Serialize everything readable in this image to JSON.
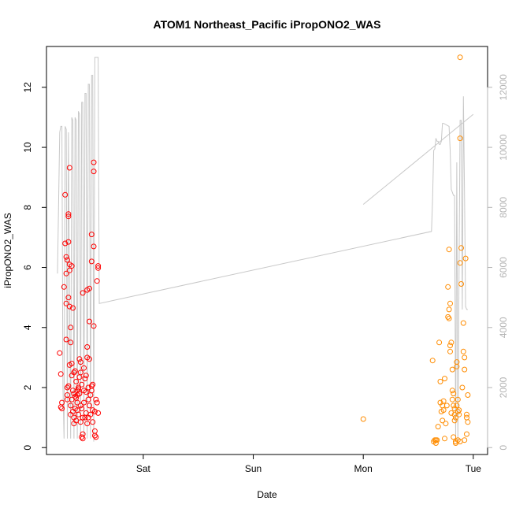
{
  "chart_data": {
    "type": "scatter",
    "title": "ATOM1 Northeast_Pacific iPropONO2_WAS",
    "xlabel": "Date",
    "ylabel": "iPropONO2_WAS",
    "x_ticks": [
      {
        "day": 0,
        "label": "Sat"
      },
      {
        "day": 1,
        "label": "Sun"
      },
      {
        "day": 2,
        "label": "Mon"
      },
      {
        "day": 3,
        "label": "Tue"
      }
    ],
    "xlim": [
      -0.88,
      3.13
    ],
    "ylim": [
      -0.23,
      13.36
    ],
    "y_ticks": [
      0,
      2,
      4,
      6,
      8,
      10,
      12
    ],
    "y2_ticks": [
      0,
      2000,
      4000,
      6000,
      8000,
      10000,
      12000
    ],
    "y2lim": [
      -230,
      13360
    ],
    "grid": false,
    "colors": {
      "series1": "#ff0000",
      "series2": "#ff8c00",
      "altitude": "#c8c8c8",
      "axis2": "#b4b4b4"
    },
    "series": [
      {
        "color": "#ff0000",
        "points": [
          [
            -0.76,
            3.15
          ],
          [
            -0.75,
            2.45
          ],
          [
            -0.75,
            1.35
          ],
          [
            -0.74,
            1.5
          ],
          [
            -0.74,
            1.3
          ],
          [
            -0.72,
            5.35
          ],
          [
            -0.71,
            6.8
          ],
          [
            -0.71,
            8.42
          ],
          [
            -0.7,
            6.35
          ],
          [
            -0.7,
            5.8
          ],
          [
            -0.7,
            4.8
          ],
          [
            -0.7,
            3.6
          ],
          [
            -0.69,
            6.25
          ],
          [
            -0.69,
            2.0
          ],
          [
            -0.69,
            1.75
          ],
          [
            -0.69,
            1.6
          ],
          [
            -0.68,
            6.85
          ],
          [
            -0.68,
            7.7
          ],
          [
            -0.68,
            7.78
          ],
          [
            -0.68,
            5.0
          ],
          [
            -0.68,
            2.05
          ],
          [
            -0.67,
            9.32
          ],
          [
            -0.67,
            6.1
          ],
          [
            -0.67,
            5.9
          ],
          [
            -0.67,
            4.7
          ],
          [
            -0.67,
            2.75
          ],
          [
            -0.66,
            3.5
          ],
          [
            -0.66,
            4.0
          ],
          [
            -0.66,
            1.4
          ],
          [
            -0.66,
            1.1
          ],
          [
            -0.65,
            6.05
          ],
          [
            -0.65,
            2.8
          ],
          [
            -0.65,
            2.4
          ],
          [
            -0.65,
            1.6
          ],
          [
            -0.64,
            4.65
          ],
          [
            -0.64,
            1.9
          ],
          [
            -0.64,
            1.2
          ],
          [
            -0.63,
            2.5
          ],
          [
            -0.63,
            1.8
          ],
          [
            -0.63,
            1.0
          ],
          [
            -0.63,
            0.8
          ],
          [
            -0.62,
            2.55
          ],
          [
            -0.62,
            1.7
          ],
          [
            -0.62,
            1.3
          ],
          [
            -0.61,
            2.2
          ],
          [
            -0.61,
            1.65
          ],
          [
            -0.61,
            0.9
          ],
          [
            -0.6,
            1.9
          ],
          [
            -0.6,
            1.75
          ],
          [
            -0.6,
            1.5
          ],
          [
            -0.6,
            1.25
          ],
          [
            -0.59,
            2.0
          ],
          [
            -0.59,
            1.95
          ],
          [
            -0.59,
            1.1
          ],
          [
            -0.58,
            2.95
          ],
          [
            -0.58,
            1.8
          ],
          [
            -0.58,
            2.35
          ],
          [
            -0.57,
            2.85
          ],
          [
            -0.57,
            2.5
          ],
          [
            -0.57,
            1.4
          ],
          [
            -0.57,
            0.85
          ],
          [
            -0.56,
            2.1
          ],
          [
            -0.56,
            1.3
          ],
          [
            -0.56,
            0.35
          ],
          [
            -0.55,
            0.3
          ],
          [
            -0.55,
            0.45
          ],
          [
            -0.55,
            1.0
          ],
          [
            -0.55,
            5.15
          ],
          [
            -0.54,
            2.65
          ],
          [
            -0.54,
            1.9
          ],
          [
            -0.54,
            1.5
          ],
          [
            -0.53,
            2.3
          ],
          [
            -0.53,
            1.0
          ],
          [
            -0.52,
            2.4
          ],
          [
            -0.52,
            1.85
          ],
          [
            -0.52,
            1.15
          ],
          [
            -0.51,
            5.25
          ],
          [
            -0.51,
            3.0
          ],
          [
            -0.51,
            3.35
          ],
          [
            -0.51,
            0.8
          ],
          [
            -0.5,
            2.0
          ],
          [
            -0.5,
            1.6
          ],
          [
            -0.5,
            1.0
          ],
          [
            -0.49,
            5.3
          ],
          [
            -0.49,
            4.2
          ],
          [
            -0.49,
            1.4
          ],
          [
            -0.49,
            2.95
          ],
          [
            -0.48,
            1.75
          ],
          [
            -0.48,
            1.1
          ],
          [
            -0.47,
            7.1
          ],
          [
            -0.47,
            6.2
          ],
          [
            -0.47,
            2.05
          ],
          [
            -0.47,
            1.9
          ],
          [
            -0.46,
            2.1
          ],
          [
            -0.46,
            1.25
          ],
          [
            -0.46,
            0.85
          ],
          [
            -0.45,
            9.5
          ],
          [
            -0.45,
            9.2
          ],
          [
            -0.45,
            6.7
          ],
          [
            -0.45,
            4.05
          ],
          [
            -0.44,
            1.2
          ],
          [
            -0.44,
            0.55
          ],
          [
            -0.44,
            0.4
          ],
          [
            -0.43,
            0.35
          ],
          [
            -0.43,
            1.6
          ],
          [
            -0.42,
            1.5
          ],
          [
            -0.42,
            5.55
          ],
          [
            -0.41,
            6.05
          ],
          [
            -0.41,
            5.98
          ],
          [
            -0.41,
            1.15
          ]
        ]
      },
      {
        "color": "#ff8c00",
        "points": [
          [
            2.0,
            0.95
          ],
          [
            2.63,
            2.9
          ],
          [
            2.64,
            0.2
          ],
          [
            2.65,
            0.25
          ],
          [
            2.66,
            0.15
          ],
          [
            2.66,
            0.25
          ],
          [
            2.67,
            0.25
          ],
          [
            2.68,
            0.7
          ],
          [
            2.69,
            3.5
          ],
          [
            2.7,
            2.2
          ],
          [
            2.7,
            1.5
          ],
          [
            2.71,
            1.2
          ],
          [
            2.72,
            0.9
          ],
          [
            2.72,
            1.4
          ],
          [
            2.73,
            1.25
          ],
          [
            2.73,
            1.55
          ],
          [
            2.74,
            2.3
          ],
          [
            2.74,
            0.3
          ],
          [
            2.75,
            0.8
          ],
          [
            2.76,
            1.4
          ],
          [
            2.77,
            5.35
          ],
          [
            2.77,
            4.35
          ],
          [
            2.78,
            6.6
          ],
          [
            2.78,
            4.3
          ],
          [
            2.78,
            4.6
          ],
          [
            2.79,
            4.8
          ],
          [
            2.79,
            3.4
          ],
          [
            2.79,
            3.2
          ],
          [
            2.8,
            3.5
          ],
          [
            2.8,
            1.15
          ],
          [
            2.81,
            2.6
          ],
          [
            2.81,
            1.9
          ],
          [
            2.81,
            1.6
          ],
          [
            2.82,
            0.35
          ],
          [
            2.82,
            1.8
          ],
          [
            2.82,
            1.4
          ],
          [
            2.83,
            1.1
          ],
          [
            2.83,
            0.9
          ],
          [
            2.83,
            1.3
          ],
          [
            2.84,
            0.2
          ],
          [
            2.84,
            0.15
          ],
          [
            2.84,
            1.0
          ],
          [
            2.85,
            1.4
          ],
          [
            2.85,
            2.7
          ],
          [
            2.85,
            2.85
          ],
          [
            2.86,
            0.25
          ],
          [
            2.86,
            1.2
          ],
          [
            2.86,
            1.6
          ],
          [
            2.87,
            1.25
          ],
          [
            2.87,
            1.1
          ],
          [
            2.88,
            0.2
          ],
          [
            2.88,
            6.15
          ],
          [
            2.88,
            10.3
          ],
          [
            2.88,
            13.0
          ],
          [
            2.89,
            6.65
          ],
          [
            2.89,
            5.45
          ],
          [
            2.9,
            2.0
          ],
          [
            2.91,
            4.15
          ],
          [
            2.91,
            3.2
          ],
          [
            2.92,
            3.0
          ],
          [
            2.92,
            2.6
          ],
          [
            2.92,
            0.25
          ],
          [
            2.93,
            6.3
          ],
          [
            2.94,
            0.45
          ],
          [
            2.94,
            1.1
          ],
          [
            2.94,
            1.0
          ],
          [
            2.95,
            0.85
          ],
          [
            2.95,
            1.75
          ]
        ]
      }
    ],
    "altitude_line": [
      [
        -0.78,
        5800
      ],
      [
        -0.76,
        10500
      ],
      [
        -0.75,
        10700
      ],
      [
        -0.74,
        10700
      ],
      [
        -0.73,
        2000
      ],
      [
        -0.72,
        300
      ],
      [
        -0.71,
        10700
      ],
      [
        -0.7,
        10600
      ],
      [
        -0.69,
        300
      ],
      [
        -0.68,
        10500
      ],
      [
        -0.67,
        5000
      ],
      [
        -0.66,
        300
      ],
      [
        -0.65,
        11000
      ],
      [
        -0.64,
        10900
      ],
      [
        -0.63,
        300
      ],
      [
        -0.62,
        11000
      ],
      [
        -0.61,
        10900
      ],
      [
        -0.6,
        300
      ],
      [
        -0.59,
        11200
      ],
      [
        -0.58,
        11100
      ],
      [
        -0.57,
        300
      ],
      [
        -0.56,
        11500
      ],
      [
        -0.55,
        11500
      ],
      [
        -0.54,
        300
      ],
      [
        -0.53,
        11800
      ],
      [
        -0.52,
        11800
      ],
      [
        -0.51,
        300
      ],
      [
        -0.5,
        12100
      ],
      [
        -0.49,
        12100
      ],
      [
        -0.48,
        300
      ],
      [
        -0.47,
        12400
      ],
      [
        -0.46,
        12400
      ],
      [
        -0.45,
        200
      ],
      [
        -0.44,
        13000
      ],
      [
        -0.42,
        13000
      ],
      [
        -0.41,
        13000
      ],
      [
        -0.4,
        4800
      ],
      [
        2.62,
        7200
      ],
      [
        2.63,
        8300
      ],
      [
        2.64,
        9900
      ],
      [
        2.65,
        9950
      ],
      [
        2.66,
        10300
      ],
      [
        2.67,
        10200
      ],
      [
        2.68,
        10200
      ],
      [
        2.69,
        10100
      ],
      [
        2.7,
        10100
      ],
      [
        2.71,
        10200
      ],
      [
        2.72,
        10800
      ],
      [
        2.73,
        10800
      ],
      [
        2.78,
        10700
      ],
      [
        2.79,
        9900
      ],
      [
        2.8,
        8600
      ],
      [
        2.81,
        8500
      ],
      [
        2.82,
        8400
      ],
      [
        2.83,
        8400
      ],
      [
        2.84,
        200
      ],
      [
        2.85,
        9500
      ],
      [
        2.86,
        200
      ],
      [
        2.88,
        10900
      ],
      [
        2.89,
        10900
      ],
      [
        2.9,
        4600
      ],
      [
        2.91,
        11700
      ],
      [
        2.92,
        8500
      ],
      [
        2.93,
        4700
      ],
      [
        2.94,
        4600
      ],
      [
        2.95,
        4600
      ]
    ],
    "altitude_segment": [
      [
        2.0,
        8100
      ],
      [
        3.0,
        11100
      ]
    ]
  }
}
